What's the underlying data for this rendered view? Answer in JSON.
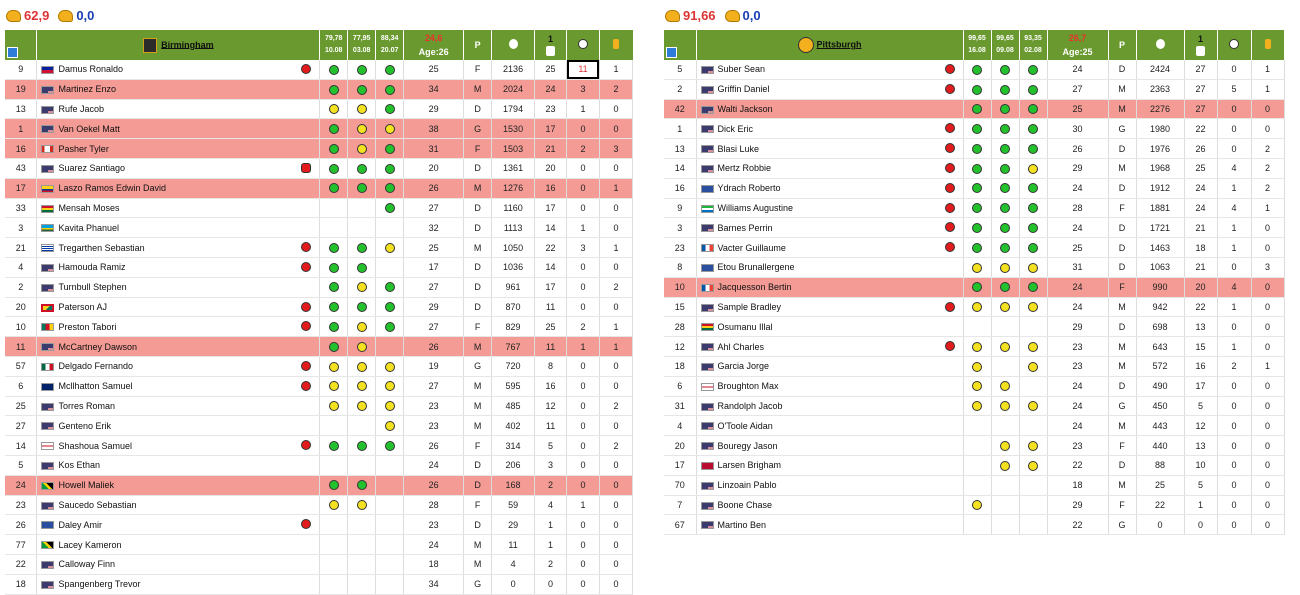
{
  "left": {
    "strength": "62,9",
    "strength2": "0,0",
    "team": "Birmingham",
    "training_dates": [
      {
        "value": "79,78",
        "date": "10.08"
      },
      {
        "value": "77,95",
        "date": "03.08"
      },
      {
        "value": "88,34",
        "date": "20.07"
      }
    ],
    "avg_label": "24,6",
    "age_label": "Age:26",
    "pos_label": "P",
    "games_header": "1",
    "players": [
      {
        "no": "9",
        "flag": "ht",
        "name": "Damus Ronaldo",
        "status": "red",
        "t1": "green",
        "t2": "green",
        "t3": "green",
        "age": "25",
        "pos": "F",
        "min": "2136",
        "gp": "25",
        "g": "11",
        "a": "1",
        "hl": false,
        "boxed": true
      },
      {
        "no": "19",
        "flag": "us",
        "name": "Martinez Enzo",
        "status": "",
        "t1": "green",
        "t2": "green",
        "t3": "green",
        "age": "34",
        "pos": "M",
        "min": "2024",
        "gp": "24",
        "g": "3",
        "a": "2",
        "hl": true
      },
      {
        "no": "13",
        "flag": "us",
        "name": "Rufe Jacob",
        "status": "",
        "t1": "yellow",
        "t2": "yellow",
        "t3": "green",
        "age": "29",
        "pos": "D",
        "min": "1794",
        "gp": "23",
        "g": "1",
        "a": "0",
        "hl": false
      },
      {
        "no": "1",
        "flag": "us",
        "name": "Van Oekel Matt",
        "status": "",
        "t1": "green",
        "t2": "yellow",
        "t3": "yellow",
        "age": "38",
        "pos": "G",
        "min": "1530",
        "gp": "17",
        "g": "0",
        "a": "0",
        "hl": true
      },
      {
        "no": "16",
        "flag": "ca",
        "name": "Pasher Tyler",
        "status": "",
        "t1": "green",
        "t2": "yellow",
        "t3": "green",
        "age": "31",
        "pos": "F",
        "min": "1503",
        "gp": "21",
        "g": "2",
        "a": "3",
        "hl": true
      },
      {
        "no": "43",
        "flag": "us",
        "name": "Suarez Santiago",
        "status": "redhex",
        "t1": "green",
        "t2": "green",
        "t3": "green",
        "age": "20",
        "pos": "D",
        "min": "1361",
        "gp": "20",
        "g": "0",
        "a": "0",
        "hl": false
      },
      {
        "no": "17",
        "flag": "co",
        "name": "Laszo Ramos Edwin David",
        "status": "",
        "t1": "green",
        "t2": "green",
        "t3": "green",
        "age": "26",
        "pos": "M",
        "min": "1276",
        "gp": "16",
        "g": "0",
        "a": "1",
        "hl": true
      },
      {
        "no": "33",
        "flag": "gh",
        "name": "Mensah Moses",
        "status": "",
        "t1": "",
        "t2": "",
        "t3": "green",
        "age": "27",
        "pos": "D",
        "min": "1160",
        "gp": "17",
        "g": "0",
        "a": "0",
        "hl": false
      },
      {
        "no": "3",
        "flag": "rw",
        "name": "Kavita Phanuel",
        "status": "",
        "t1": "",
        "t2": "",
        "t3": "",
        "age": "32",
        "pos": "D",
        "min": "1113",
        "gp": "14",
        "g": "1",
        "a": "0",
        "hl": false
      },
      {
        "no": "21",
        "flag": "uy",
        "name": "Tregarthen Sebastian",
        "status": "red",
        "t1": "green",
        "t2": "green",
        "t3": "yellow",
        "age": "25",
        "pos": "M",
        "min": "1050",
        "gp": "22",
        "g": "3",
        "a": "1",
        "hl": false
      },
      {
        "no": "4",
        "flag": "us",
        "name": "Hamouda Ramiz",
        "status": "red",
        "t1": "green",
        "t2": "green",
        "t3": "",
        "age": "17",
        "pos": "D",
        "min": "1036",
        "gp": "14",
        "g": "0",
        "a": "0",
        "hl": false
      },
      {
        "no": "2",
        "flag": "us",
        "name": "Turnbull Stephen",
        "status": "",
        "t1": "green",
        "t2": "yellow",
        "t3": "green",
        "age": "27",
        "pos": "D",
        "min": "961",
        "gp": "17",
        "g": "0",
        "a": "2",
        "hl": false
      },
      {
        "no": "20",
        "flag": "gd",
        "name": "Paterson AJ",
        "status": "red",
        "t1": "green",
        "t2": "green",
        "t3": "green",
        "age": "29",
        "pos": "D",
        "min": "870",
        "gp": "11",
        "g": "0",
        "a": "0",
        "hl": false
      },
      {
        "no": "10",
        "flag": "cm",
        "name": "Preston Tabori",
        "status": "red",
        "t1": "green",
        "t2": "yellow",
        "t3": "green",
        "age": "27",
        "pos": "F",
        "min": "829",
        "gp": "25",
        "g": "2",
        "a": "1",
        "hl": false
      },
      {
        "no": "11",
        "flag": "us",
        "name": "McCartney Dawson",
        "status": "",
        "t1": "green",
        "t2": "yellow",
        "t3": "",
        "age": "26",
        "pos": "M",
        "min": "767",
        "gp": "11",
        "g": "1",
        "a": "1",
        "hl": true
      },
      {
        "no": "57",
        "flag": "mx",
        "name": "Delgado Fernando",
        "status": "red",
        "t1": "yellow",
        "t2": "yellow",
        "t3": "yellow",
        "age": "19",
        "pos": "G",
        "min": "720",
        "gp": "8",
        "g": "0",
        "a": "0",
        "hl": false
      },
      {
        "no": "6",
        "flag": "au",
        "name": "Mcllhatton Samuel",
        "status": "red",
        "t1": "yellow",
        "t2": "yellow",
        "t3": "yellow",
        "age": "27",
        "pos": "M",
        "min": "595",
        "gp": "16",
        "g": "0",
        "a": "0",
        "hl": false
      },
      {
        "no": "25",
        "flag": "us",
        "name": "Torres Roman",
        "status": "",
        "t1": "yellow",
        "t2": "yellow",
        "t3": "yellow",
        "age": "23",
        "pos": "M",
        "min": "485",
        "gp": "12",
        "g": "0",
        "a": "2",
        "hl": false
      },
      {
        "no": "27",
        "flag": "us",
        "name": "Genteno Erik",
        "status": "",
        "t1": "",
        "t2": "",
        "t3": "yellow",
        "age": "23",
        "pos": "M",
        "min": "402",
        "gp": "11",
        "g": "0",
        "a": "0",
        "hl": false
      },
      {
        "no": "14",
        "flag": "en",
        "name": "Shashoua Samuel",
        "status": "red",
        "t1": "green",
        "t2": "green",
        "t3": "green",
        "age": "26",
        "pos": "F",
        "min": "314",
        "gp": "5",
        "g": "0",
        "a": "2",
        "hl": false
      },
      {
        "no": "5",
        "flag": "us",
        "name": "Kos Ethan",
        "status": "",
        "t1": "",
        "t2": "",
        "t3": "",
        "age": "24",
        "pos": "D",
        "min": "206",
        "gp": "3",
        "g": "0",
        "a": "0",
        "hl": false
      },
      {
        "no": "24",
        "flag": "jm",
        "name": "Howell Maliek",
        "status": "",
        "t1": "green",
        "t2": "green",
        "t3": "",
        "age": "26",
        "pos": "D",
        "min": "168",
        "gp": "2",
        "g": "0",
        "a": "0",
        "hl": true
      },
      {
        "no": "23",
        "flag": "us",
        "name": "Saucedo Sebastian",
        "status": "",
        "t1": "yellow",
        "t2": "yellow",
        "t3": "",
        "age": "28",
        "pos": "F",
        "min": "59",
        "gp": "4",
        "g": "1",
        "a": "0",
        "hl": false
      },
      {
        "no": "26",
        "flag": "cp",
        "name": "Daley Amir",
        "status": "red",
        "t1": "",
        "t2": "",
        "t3": "",
        "age": "23",
        "pos": "D",
        "min": "29",
        "gp": "1",
        "g": "0",
        "a": "0",
        "hl": false
      },
      {
        "no": "77",
        "flag": "jm",
        "name": "Lacey Kameron",
        "status": "",
        "t1": "",
        "t2": "",
        "t3": "",
        "age": "24",
        "pos": "M",
        "min": "11",
        "gp": "1",
        "g": "0",
        "a": "0",
        "hl": false
      },
      {
        "no": "22",
        "flag": "us",
        "name": "Calloway Finn",
        "status": "",
        "t1": "",
        "t2": "",
        "t3": "",
        "age": "18",
        "pos": "M",
        "min": "4",
        "gp": "2",
        "g": "0",
        "a": "0",
        "hl": false
      },
      {
        "no": "18",
        "flag": "us",
        "name": "Spangenberg Trevor",
        "status": "",
        "t1": "",
        "t2": "",
        "t3": "",
        "age": "34",
        "pos": "G",
        "min": "0",
        "gp": "0",
        "g": "0",
        "a": "0",
        "hl": false
      }
    ]
  },
  "right": {
    "strength": "91,66",
    "strength2": "0,0",
    "team": "Pittsburgh",
    "training_dates": [
      {
        "value": "99,65",
        "date": "16.08"
      },
      {
        "value": "99,65",
        "date": "09.08"
      },
      {
        "value": "93,35",
        "date": "02.08"
      }
    ],
    "avg_label": "26,7",
    "age_label": "Age:25",
    "pos_label": "P",
    "games_header": "1",
    "players": [
      {
        "no": "5",
        "flag": "us",
        "name": "Suber Sean",
        "status": "red",
        "t1": "green",
        "t2": "green",
        "t3": "green",
        "age": "24",
        "pos": "D",
        "min": "2424",
        "gp": "27",
        "g": "0",
        "a": "1",
        "hl": false
      },
      {
        "no": "2",
        "flag": "us",
        "name": "Griffin Daniel",
        "status": "red",
        "t1": "green",
        "t2": "green",
        "t3": "green",
        "age": "27",
        "pos": "M",
        "min": "2363",
        "gp": "27",
        "g": "5",
        "a": "1",
        "hl": false
      },
      {
        "no": "42",
        "flag": "us",
        "name": "Walti Jackson",
        "status": "",
        "t1": "green",
        "t2": "green",
        "t3": "green",
        "age": "25",
        "pos": "M",
        "min": "2276",
        "gp": "27",
        "g": "0",
        "a": "0",
        "hl": true
      },
      {
        "no": "1",
        "flag": "us",
        "name": "Dick Eric",
        "status": "red",
        "t1": "green",
        "t2": "green",
        "t3": "green",
        "age": "30",
        "pos": "G",
        "min": "1980",
        "gp": "22",
        "g": "0",
        "a": "0",
        "hl": false
      },
      {
        "no": "13",
        "flag": "us",
        "name": "Blasi Luke",
        "status": "red",
        "t1": "green",
        "t2": "green",
        "t3": "green",
        "age": "26",
        "pos": "D",
        "min": "1976",
        "gp": "26",
        "g": "0",
        "a": "2",
        "hl": false
      },
      {
        "no": "14",
        "flag": "us",
        "name": "Mertz Robbie",
        "status": "red",
        "t1": "green",
        "t2": "green",
        "t3": "yellow",
        "age": "29",
        "pos": "M",
        "min": "1968",
        "gp": "25",
        "g": "4",
        "a": "2",
        "hl": false
      },
      {
        "no": "16",
        "flag": "cp",
        "name": "Ydrach Roberto",
        "status": "red",
        "t1": "green",
        "t2": "green",
        "t3": "green",
        "age": "24",
        "pos": "D",
        "min": "1912",
        "gp": "24",
        "g": "1",
        "a": "2",
        "hl": false
      },
      {
        "no": "9",
        "flag": "sl",
        "name": "Williams Augustine",
        "status": "red",
        "t1": "green",
        "t2": "green",
        "t3": "green",
        "age": "28",
        "pos": "F",
        "min": "1881",
        "gp": "24",
        "g": "4",
        "a": "1",
        "hl": false
      },
      {
        "no": "3",
        "flag": "us",
        "name": "Barnes Perrin",
        "status": "red",
        "t1": "green",
        "t2": "green",
        "t3": "green",
        "age": "24",
        "pos": "D",
        "min": "1721",
        "gp": "21",
        "g": "1",
        "a": "0",
        "hl": false
      },
      {
        "no": "23",
        "flag": "fr",
        "name": "Vacter Guillaume",
        "status": "red",
        "t1": "green",
        "t2": "green",
        "t3": "green",
        "age": "25",
        "pos": "D",
        "min": "1463",
        "gp": "18",
        "g": "1",
        "a": "0",
        "hl": false
      },
      {
        "no": "8",
        "flag": "cp",
        "name": "Etou Brunallergene",
        "status": "",
        "t1": "yellow",
        "t2": "yellow",
        "t3": "yellow",
        "age": "31",
        "pos": "D",
        "min": "1063",
        "gp": "21",
        "g": "0",
        "a": "3",
        "hl": false
      },
      {
        "no": "10",
        "flag": "fr",
        "name": "Jacquesson Bertin",
        "status": "",
        "t1": "green",
        "t2": "green",
        "t3": "green",
        "age": "24",
        "pos": "F",
        "min": "990",
        "gp": "20",
        "g": "4",
        "a": "0",
        "hl": true
      },
      {
        "no": "15",
        "flag": "us",
        "name": "Sample Bradley",
        "status": "red",
        "t1": "yellow",
        "t2": "yellow",
        "t3": "yellow",
        "age": "24",
        "pos": "M",
        "min": "942",
        "gp": "22",
        "g": "1",
        "a": "0",
        "hl": false
      },
      {
        "no": "28",
        "flag": "gh",
        "name": "Osumanu Illal",
        "status": "",
        "t1": "",
        "t2": "",
        "t3": "",
        "age": "29",
        "pos": "D",
        "min": "698",
        "gp": "13",
        "g": "0",
        "a": "0",
        "hl": false
      },
      {
        "no": "12",
        "flag": "us",
        "name": "Ahl Charles",
        "status": "red",
        "t1": "yellow",
        "t2": "yellow",
        "t3": "yellow",
        "age": "23",
        "pos": "M",
        "min": "643",
        "gp": "15",
        "g": "1",
        "a": "0",
        "hl": false
      },
      {
        "no": "18",
        "flag": "us",
        "name": "Garcia Jorge",
        "status": "",
        "t1": "yellow",
        "t2": "",
        "t3": "yellow",
        "age": "23",
        "pos": "M",
        "min": "572",
        "gp": "16",
        "g": "2",
        "a": "1",
        "hl": false
      },
      {
        "no": "6",
        "flag": "en",
        "name": "Broughton Max",
        "status": "",
        "t1": "yellow",
        "t2": "yellow",
        "t3": "",
        "age": "24",
        "pos": "D",
        "min": "490",
        "gp": "17",
        "g": "0",
        "a": "0",
        "hl": false
      },
      {
        "no": "31",
        "flag": "us",
        "name": "Randolph Jacob",
        "status": "",
        "t1": "yellow",
        "t2": "yellow",
        "t3": "yellow",
        "age": "24",
        "pos": "G",
        "min": "450",
        "gp": "5",
        "g": "0",
        "a": "0",
        "hl": false
      },
      {
        "no": "4",
        "flag": "us",
        "name": "O'Toole Aidan",
        "status": "",
        "t1": "",
        "t2": "",
        "t3": "",
        "age": "24",
        "pos": "M",
        "min": "443",
        "gp": "12",
        "g": "0",
        "a": "0",
        "hl": false
      },
      {
        "no": "20",
        "flag": "us",
        "name": "Bouregy Jason",
        "status": "",
        "t1": "",
        "t2": "yellow",
        "t3": "yellow",
        "age": "23",
        "pos": "F",
        "min": "440",
        "gp": "13",
        "g": "0",
        "a": "0",
        "hl": false
      },
      {
        "no": "17",
        "flag": "no",
        "name": "Larsen Brigham",
        "status": "",
        "t1": "",
        "t2": "yellow",
        "t3": "yellow",
        "age": "22",
        "pos": "D",
        "min": "88",
        "gp": "10",
        "g": "0",
        "a": "0",
        "hl": false
      },
      {
        "no": "70",
        "flag": "us",
        "name": "Linzoain Pablo",
        "status": "",
        "t1": "",
        "t2": "",
        "t3": "",
        "age": "18",
        "pos": "M",
        "min": "25",
        "gp": "5",
        "g": "0",
        "a": "0",
        "hl": false
      },
      {
        "no": "7",
        "flag": "us",
        "name": "Boone Chase",
        "status": "",
        "t1": "yellow",
        "t2": "",
        "t3": "",
        "age": "29",
        "pos": "F",
        "min": "22",
        "gp": "1",
        "g": "0",
        "a": "0",
        "hl": false
      },
      {
        "no": "67",
        "flag": "us",
        "name": "Martino Ben",
        "status": "",
        "t1": "",
        "t2": "",
        "t3": "",
        "age": "22",
        "pos": "G",
        "min": "0",
        "gp": "0",
        "g": "0",
        "a": "0",
        "hl": false
      }
    ]
  },
  "icons": {
    "strength_icon": "bicep-icon",
    "info_icon": "info-icon",
    "games_icon": "document-icon",
    "goals_icon": "soccer-ball-icon",
    "assists_icon": "key-icon"
  },
  "colors": {
    "header_bg": "#6a9a2f",
    "highlight_row": "#f39b94",
    "green": "#23c22d",
    "yellow": "#f4e11f",
    "red": "#e21c1c"
  }
}
